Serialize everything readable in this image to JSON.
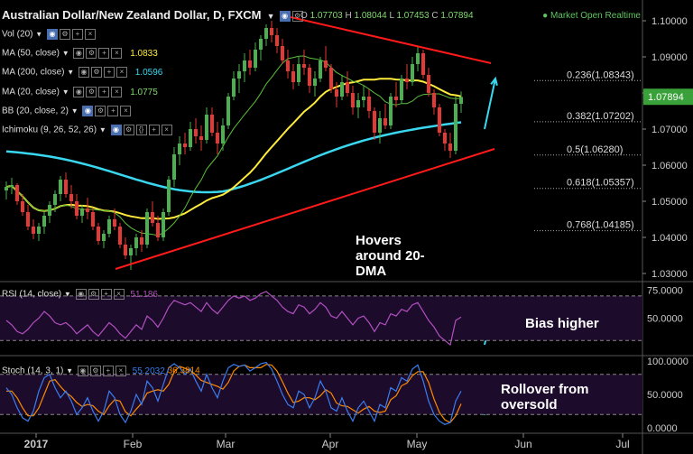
{
  "header": {
    "title": "Australian Dollar/New Zealand Dollar, D, FXCM",
    "ohlc": {
      "o_label": "O",
      "o": "1.07703",
      "h_label": "H",
      "h": "1.08044",
      "l_label": "L",
      "l": "1.07453",
      "c_label": "C",
      "c": "1.07894"
    },
    "market_status": "Market Open",
    "realtime": "Realtime"
  },
  "indicators": [
    {
      "label": "Vol (20)",
      "value": ""
    },
    {
      "label": "MA (50, close)",
      "value": "1.0833",
      "color": "#ffeb3b"
    },
    {
      "label": "MA (200, close)",
      "value": "1.0596",
      "color": "#3ad8f0"
    },
    {
      "label": "MA (20, close)",
      "value": "1.0775",
      "color": "#7fdc6c"
    },
    {
      "label": "BB (20, close, 2)",
      "value": ""
    },
    {
      "label": "Ichimoku (9, 26, 52, 26)",
      "value": ""
    }
  ],
  "colors": {
    "up": "#4caf50",
    "down": "#e53935",
    "ma50": "#ffeb3b",
    "ma200": "#3ad8f0",
    "ma20": "#5cbf3a",
    "trendline": "#ff1a1a",
    "arrow": "#3ad8f0",
    "rsi": "#b24fc0",
    "stoch_k": "#3b7cf0",
    "stoch_d": "#ff8a00",
    "panel_bg": "#1c0b2a"
  },
  "chart_data": {
    "type": "line",
    "symbol": "AUDNZD",
    "y_axis": {
      "ticks": [
        "1.10000",
        "1.09000",
        "1.08000",
        "1.07000",
        "1.06000",
        "1.05000",
        "1.04000",
        "1.03000"
      ],
      "ylim": [
        1.0275,
        1.1035
      ]
    },
    "x_axis": {
      "ticks": [
        "2017",
        "Feb",
        "Mar",
        "Apr",
        "May",
        "Jun",
        "Jul"
      ]
    },
    "last_price": "1.07894",
    "fibonacci": [
      {
        "label": "0.236(1.08343)",
        "value": 1.08343
      },
      {
        "label": "0.382(1.07202)",
        "value": 1.07202
      },
      {
        "label": "0.5(1.06280)",
        "value": 1.0628
      },
      {
        "label": "0.618(1.05357)",
        "value": 1.05357
      },
      {
        "label": "0.768(1.04185)",
        "value": 1.04185
      }
    ],
    "candles": [
      [
        1.053,
        1.0555,
        1.0505,
        1.054
      ],
      [
        1.054,
        1.0565,
        1.052,
        1.0545
      ],
      [
        1.0545,
        1.055,
        1.049,
        1.05
      ],
      [
        1.05,
        1.052,
        1.046,
        1.047
      ],
      [
        1.047,
        1.049,
        1.042,
        1.043
      ],
      [
        1.043,
        1.045,
        1.0395,
        1.041
      ],
      [
        1.041,
        1.044,
        1.039,
        1.043
      ],
      [
        1.043,
        1.047,
        1.041,
        1.046
      ],
      [
        1.046,
        1.05,
        1.044,
        1.049
      ],
      [
        1.049,
        1.053,
        1.047,
        1.052
      ],
      [
        1.052,
        1.057,
        1.05,
        1.056
      ],
      [
        1.056,
        1.058,
        1.051,
        1.052
      ],
      [
        1.052,
        1.0545,
        1.048,
        1.05
      ],
      [
        1.05,
        1.052,
        1.045,
        1.046
      ],
      [
        1.046,
        1.049,
        1.044,
        1.048
      ],
      [
        1.048,
        1.051,
        1.045,
        1.047
      ],
      [
        1.047,
        1.048,
        1.042,
        1.043
      ],
      [
        1.043,
        1.044,
        1.038,
        1.039
      ],
      [
        1.039,
        1.042,
        1.037,
        1.041
      ],
      [
        1.041,
        1.046,
        1.04,
        1.045
      ],
      [
        1.045,
        1.048,
        1.042,
        1.043
      ],
      [
        1.043,
        1.044,
        1.037,
        1.038
      ],
      [
        1.038,
        1.04,
        1.034,
        1.035
      ],
      [
        1.035,
        1.038,
        1.031,
        1.037
      ],
      [
        1.037,
        1.041,
        1.035,
        1.04
      ],
      [
        1.04,
        1.042,
        1.036,
        1.038
      ],
      [
        1.038,
        1.048,
        1.037,
        1.047
      ],
      [
        1.047,
        1.05,
        1.043,
        1.044
      ],
      [
        1.044,
        1.046,
        1.039,
        1.04
      ],
      [
        1.04,
        1.048,
        1.039,
        1.047
      ],
      [
        1.047,
        1.057,
        1.046,
        1.056
      ],
      [
        1.056,
        1.065,
        1.054,
        1.063
      ],
      [
        1.063,
        1.068,
        1.06,
        1.066
      ],
      [
        1.066,
        1.069,
        1.063,
        1.065
      ],
      [
        1.065,
        1.072,
        1.064,
        1.07
      ],
      [
        1.07,
        1.073,
        1.066,
        1.068
      ],
      [
        1.068,
        1.071,
        1.064,
        1.067
      ],
      [
        1.067,
        1.076,
        1.066,
        1.074
      ],
      [
        1.074,
        1.076,
        1.068,
        1.069
      ],
      [
        1.069,
        1.072,
        1.063,
        1.066
      ],
      [
        1.066,
        1.073,
        1.064,
        1.071
      ],
      [
        1.071,
        1.08,
        1.07,
        1.079
      ],
      [
        1.079,
        1.086,
        1.078,
        1.084
      ],
      [
        1.084,
        1.088,
        1.08,
        1.086
      ],
      [
        1.086,
        1.091,
        1.083,
        1.089
      ],
      [
        1.089,
        1.092,
        1.085,
        1.087
      ],
      [
        1.087,
        1.094,
        1.086,
        1.092
      ],
      [
        1.092,
        1.096,
        1.089,
        1.095
      ],
      [
        1.095,
        1.099,
        1.093,
        1.098
      ],
      [
        1.098,
        1.1,
        1.094,
        1.096
      ],
      [
        1.096,
        1.098,
        1.091,
        1.093
      ],
      [
        1.093,
        1.095,
        1.088,
        1.089
      ],
      [
        1.089,
        1.092,
        1.084,
        1.086
      ],
      [
        1.086,
        1.088,
        1.081,
        1.083
      ],
      [
        1.083,
        1.09,
        1.082,
        1.088
      ],
      [
        1.088,
        1.092,
        1.085,
        1.087
      ],
      [
        1.087,
        1.088,
        1.08,
        1.082
      ],
      [
        1.082,
        1.086,
        1.079,
        1.084
      ],
      [
        1.084,
        1.09,
        1.083,
        1.089
      ],
      [
        1.089,
        1.093,
        1.086,
        1.087
      ],
      [
        1.087,
        1.088,
        1.08,
        1.081
      ],
      [
        1.081,
        1.083,
        1.076,
        1.079
      ],
      [
        1.079,
        1.085,
        1.078,
        1.083
      ],
      [
        1.083,
        1.086,
        1.079,
        1.08
      ],
      [
        1.08,
        1.082,
        1.074,
        1.076
      ],
      [
        1.076,
        1.08,
        1.073,
        1.078
      ],
      [
        1.078,
        1.082,
        1.076,
        1.079
      ],
      [
        1.079,
        1.081,
        1.073,
        1.075
      ],
      [
        1.075,
        1.076,
        1.067,
        1.069
      ],
      [
        1.069,
        1.075,
        1.066,
        1.073
      ],
      [
        1.073,
        1.077,
        1.07,
        1.071
      ],
      [
        1.071,
        1.08,
        1.07,
        1.079
      ],
      [
        1.079,
        1.083,
        1.076,
        1.078
      ],
      [
        1.078,
        1.085,
        1.077,
        1.084
      ],
      [
        1.084,
        1.088,
        1.081,
        1.083
      ],
      [
        1.083,
        1.09,
        1.082,
        1.088
      ],
      [
        1.088,
        1.093,
        1.086,
        1.091
      ],
      [
        1.091,
        1.092,
        1.084,
        1.085
      ],
      [
        1.085,
        1.087,
        1.079,
        1.08
      ],
      [
        1.08,
        1.081,
        1.074,
        1.076
      ],
      [
        1.076,
        1.077,
        1.068,
        1.069
      ],
      [
        1.069,
        1.07,
        1.064,
        1.066
      ],
      [
        1.066,
        1.069,
        1.062,
        1.064
      ],
      [
        1.064,
        1.079,
        1.063,
        1.077
      ],
      [
        1.077,
        1.0804,
        1.0745,
        1.0789
      ]
    ],
    "rsi": {
      "label": "RSI (14, close)",
      "value": "51.186",
      "levels": [
        70,
        30
      ],
      "y_axis": {
        "ticks": [
          "75.0000",
          "50.0000"
        ],
        "ylim": [
          18,
          78
        ]
      },
      "values": [
        48,
        44,
        38,
        36,
        40,
        46,
        50,
        56,
        52,
        46,
        44,
        46,
        42,
        36,
        40,
        44,
        38,
        34,
        40,
        46,
        42,
        36,
        32,
        38,
        44,
        40,
        52,
        48,
        42,
        50,
        60,
        66,
        64,
        62,
        64,
        60,
        56,
        64,
        58,
        54,
        60,
        66,
        70,
        68,
        70,
        66,
        68,
        72,
        74,
        70,
        66,
        60,
        56,
        54,
        62,
        60,
        54,
        58,
        64,
        60,
        52,
        50,
        56,
        50,
        44,
        50,
        52,
        46,
        38,
        46,
        44,
        54,
        52,
        58,
        56,
        62,
        64,
        56,
        48,
        42,
        34,
        30,
        26,
        48,
        51
      ]
    },
    "stoch": {
      "label": "Stoch (14, 3, 1)",
      "k_value": "55.2032",
      "d_value": "36.3814",
      "levels": [
        80,
        20
      ],
      "y_axis": {
        "ticks": [
          "100.0000",
          "50.0000",
          "0.0000"
        ],
        "ylim": [
          0,
          100
        ]
      },
      "k": [
        60,
        50,
        30,
        15,
        10,
        25,
        55,
        75,
        80,
        60,
        45,
        55,
        40,
        20,
        30,
        45,
        25,
        10,
        25,
        55,
        45,
        20,
        8,
        25,
        50,
        35,
        70,
        60,
        40,
        65,
        90,
        96,
        90,
        80,
        88,
        70,
        55,
        80,
        60,
        45,
        70,
        90,
        95,
        92,
        94,
        85,
        90,
        96,
        98,
        88,
        70,
        50,
        35,
        30,
        55,
        50,
        30,
        45,
        70,
        55,
        30,
        25,
        45,
        25,
        10,
        30,
        40,
        25,
        10,
        35,
        30,
        60,
        55,
        75,
        70,
        88,
        94,
        70,
        40,
        20,
        10,
        5,
        8,
        40,
        55
      ],
      "d": [
        55,
        55,
        45,
        30,
        18,
        18,
        30,
        50,
        70,
        72,
        62,
        53,
        47,
        38,
        32,
        35,
        33,
        25,
        20,
        33,
        42,
        40,
        24,
        18,
        28,
        37,
        52,
        55,
        57,
        55,
        65,
        84,
        92,
        89,
        86,
        79,
        71,
        68,
        65,
        62,
        58,
        68,
        85,
        92,
        94,
        90,
        90,
        90,
        95,
        94,
        85,
        69,
        52,
        38,
        40,
        45,
        45,
        42,
        48,
        57,
        52,
        37,
        33,
        32,
        27,
        22,
        28,
        32,
        25,
        23,
        25,
        42,
        48,
        63,
        67,
        78,
        84,
        84,
        68,
        43,
        23,
        12,
        8,
        18,
        36
      ]
    }
  },
  "annotations": {
    "main": "Hovers around 20-DMA",
    "rsi": "Bias higher",
    "stoch": "Rollover from oversold"
  }
}
